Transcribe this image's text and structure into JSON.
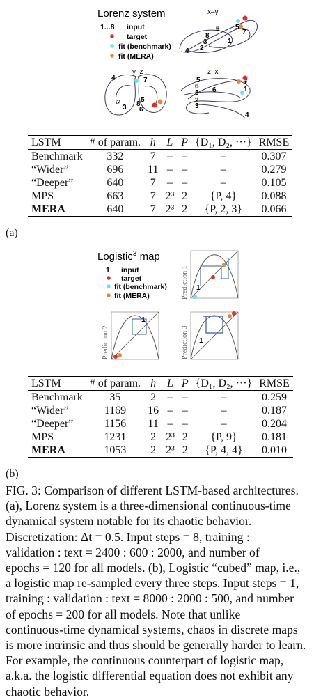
{
  "panel_a": {
    "figure_title": "Lorenz system",
    "legend": {
      "steps": "1...8",
      "input": "input",
      "target": "target",
      "fit_benchmark": "fit (benchmark)",
      "fit_mera": "fit (MERA)"
    },
    "subplot_titles": [
      "x–y",
      "y–z",
      "z–x"
    ],
    "xy_nums": [
      "1",
      "2",
      "3",
      "4",
      "5",
      "6",
      "7",
      "8"
    ],
    "yz_nums": [
      "2",
      "3",
      "4",
      "5",
      "6",
      "7",
      "8"
    ],
    "zx_nums": [
      "1",
      "2",
      "3",
      "4",
      "5",
      "6",
      "7",
      "8"
    ],
    "label": "(a)"
  },
  "panel_b": {
    "figure_title": "Logistic",
    "figure_title_sup": "3",
    "figure_title_tail": " map",
    "legend": {
      "step": "1",
      "input": "input",
      "target": "target",
      "fit_benchmark": "fit (benchmark)",
      "fit_mera": "fit (MERA)"
    },
    "ylabels": [
      "Prediction 1",
      "Prediction 2",
      "Prediction 3"
    ],
    "num": "1",
    "label": "(b)"
  },
  "table_headers": [
    "LSTM",
    "# of param.",
    "h",
    "L",
    "P",
    "{D₁, D₂, ···}",
    "RMSE"
  ],
  "table_a": [
    [
      "Benchmark",
      "332",
      "7",
      "–",
      "–",
      "–",
      "0.307"
    ],
    [
      "“Wider”",
      "696",
      "11",
      "–",
      "–",
      "–",
      "0.279"
    ],
    [
      "“Deeper”",
      "640",
      "7",
      "–",
      "–",
      "–",
      "0.105"
    ],
    [
      "MPS",
      "663",
      "7",
      "2³",
      "2",
      "{P, 4}",
      "0.088"
    ],
    [
      "MERA",
      "640",
      "7",
      "2³",
      "2",
      "{P, 2, 3}",
      "0.066"
    ]
  ],
  "table_b": [
    [
      "Benchmark",
      "35",
      "2",
      "–",
      "–",
      "–",
      "0.259"
    ],
    [
      "“Wider”",
      "1169",
      "16",
      "–",
      "–",
      "–",
      "0.187"
    ],
    [
      "“Deeper”",
      "1156",
      "11",
      "–",
      "–",
      "–",
      "0.204"
    ],
    [
      "MPS",
      "1231",
      "2",
      "2³",
      "2",
      "{P, 9}",
      "0.181"
    ],
    [
      "MERA",
      "1053",
      "2",
      "2³",
      "2",
      "{P, 4, 4}",
      "0.010"
    ]
  ],
  "caption": [
    "FIG. 3: Comparison of different LSTM-based architectures.",
    "(a), Lorenz system is a three-dimensional continuous-time",
    "dynamical system notable for its chaotic behavior.",
    "Discretization: Δt = 0.5. Input steps = 8, training :",
    "validation : text = 2400 : 600 : 2000, and number of",
    "epochs = 120 for all models. (b), Logistic “cubed” map, i.e.,",
    "a logistic map re-sampled every three steps. Input steps = 1,",
    "training : validation : text = 8000 : 2000 : 500, and number",
    "of epochs = 200 for all models. Note that unlike",
    "continuous-time dynamical systems, chaos in discrete maps",
    "is more intrinsic and thus should be generally harder to learn.",
    "For example, the continuous counterpart of logistic map,",
    "a.k.a. the logistic differential equation does not exhibit any",
    "chaotic behavior."
  ],
  "colors": {
    "target": "#d9302a",
    "benchmark": "#6fe3ec",
    "mera": "#e7873a",
    "curve": "#3a3a5a"
  }
}
